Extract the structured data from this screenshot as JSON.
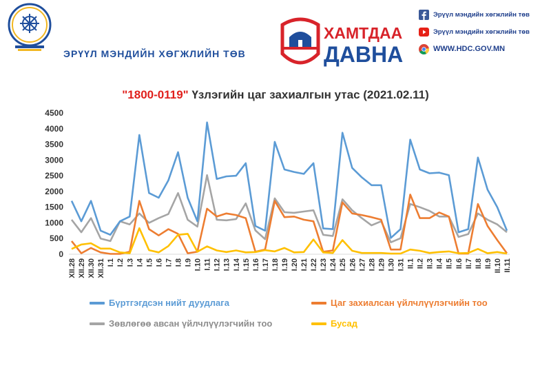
{
  "header": {
    "org_name": "ЭРҮҮЛ МЭНДИЙН ХӨГЖЛИЙН ТӨВ",
    "campaign": {
      "line1": "ХАМТДАА",
      "line2": "ДАВНА"
    },
    "socials": [
      {
        "icon": "facebook-icon",
        "text": "Эрүүл мэндийн хөгжлийн төв"
      },
      {
        "icon": "youtube-icon",
        "text": "Эрүүл мэндийн хөгжлийн төв"
      },
      {
        "icon": "chrome-icon",
        "text": "WWW.HDC.GOV.MN"
      }
    ]
  },
  "colors": {
    "blue": "#5b9bd5",
    "orange": "#ed7d31",
    "gray": "#a5a5a5",
    "yellow": "#ffc000",
    "title_red": "#e0201c",
    "brand_blue": "#1f4e9c"
  },
  "chart_data": {
    "type": "line",
    "title_highlight": "\"1800-0119\"",
    "title_rest": " Үзлэгийн цаг захиалгын утас (2021.02.11)",
    "ylim": [
      0,
      4500
    ],
    "yticks": [
      0,
      500,
      1000,
      1500,
      2000,
      2500,
      3000,
      3500,
      4000,
      4500
    ],
    "grid": false,
    "legend_position": "bottom",
    "categories": [
      "XII.28",
      "XII.29",
      "XII.30",
      "XII.31",
      "I.1",
      "I.2",
      "I.3",
      "I.4",
      "I.5",
      "I.6",
      "I.7",
      "I.8",
      "I.9",
      "I.10",
      "I.11",
      "I.12",
      "I.13",
      "I.14",
      "I.15",
      "I.16",
      "I.17",
      "I.18",
      "I.19",
      "I.20",
      "I.21",
      "I.22",
      "I.23",
      "I.24",
      "I.25",
      "I.26",
      "I.27",
      "I.28",
      "I.29",
      "I.30",
      "I.31",
      "II.1",
      "II.2",
      "II.3",
      "II.4",
      "II.5",
      "II.6",
      "II.7",
      "II.8",
      "II.9",
      "II.10",
      "II.11"
    ],
    "series": [
      {
        "name": "Бүртгэгдсэн нийт дуудлага",
        "color": "#5b9bd5",
        "values": [
          1700,
          1050,
          1700,
          750,
          620,
          1050,
          1200,
          3800,
          1950,
          1800,
          2350,
          3250,
          1800,
          1050,
          4200,
          2400,
          2480,
          2500,
          2900,
          900,
          750,
          3580,
          2700,
          2620,
          2560,
          2900,
          820,
          800,
          3870,
          2750,
          2450,
          2200,
          2200,
          520,
          800,
          3650,
          2700,
          2580,
          2600,
          2520,
          700,
          800,
          3080,
          2060,
          1500,
          750
        ]
      },
      {
        "name": "Цаг захиалсан үйлчлүүлэгчийн тоо",
        "color": "#ed7d31",
        "values": [
          420,
          30,
          200,
          60,
          10,
          10,
          80,
          1700,
          800,
          600,
          800,
          650,
          30,
          80,
          1450,
          1200,
          1300,
          1250,
          1150,
          80,
          150,
          1700,
          1180,
          1200,
          1100,
          1050,
          80,
          120,
          1650,
          1300,
          1250,
          1180,
          1100,
          150,
          150,
          1900,
          1150,
          1150,
          1330,
          1200,
          20,
          20,
          1600,
          900,
          450,
          30
        ]
      },
      {
        "name": "Зөвлөгөө авсан үйлчлүүлэгчийн тоо",
        "color": "#a5a5a5",
        "values": [
          1100,
          700,
          1150,
          500,
          420,
          1050,
          950,
          1300,
          1000,
          1150,
          1280,
          1950,
          1100,
          880,
          2520,
          1100,
          1080,
          1120,
          1620,
          760,
          480,
          1780,
          1340,
          1320,
          1360,
          1400,
          620,
          580,
          1750,
          1400,
          1150,
          920,
          1050,
          380,
          510,
          1600,
          1500,
          1380,
          1200,
          1200,
          550,
          640,
          1300,
          1100,
          950,
          700
        ]
      },
      {
        "name": "Бусад",
        "color": "#ffc000",
        "values": [
          170,
          310,
          350,
          180,
          180,
          60,
          30,
          830,
          130,
          60,
          260,
          620,
          650,
          80,
          250,
          120,
          70,
          120,
          60,
          70,
          130,
          90,
          200,
          60,
          70,
          470,
          60,
          40,
          450,
          110,
          40,
          40,
          40,
          20,
          20,
          150,
          110,
          40,
          70,
          90,
          30,
          40,
          170,
          30,
          70,
          20
        ]
      }
    ]
  }
}
